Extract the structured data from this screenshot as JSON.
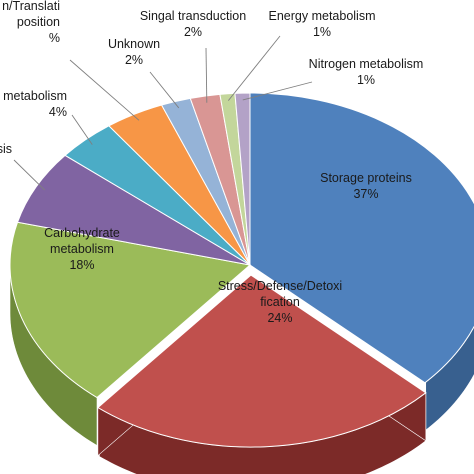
{
  "chart_data": {
    "type": "pie",
    "style": "3d-exploded",
    "slices": [
      {
        "label_lines": [
          "Storage proteins"
        ],
        "value_text": "37%",
        "value": 37,
        "color": "#4f81bd",
        "side": "#38608f"
      },
      {
        "label_lines": [
          "Stress/Defense/Detoxi",
          "fication"
        ],
        "value_text": "24%",
        "value": 24,
        "color": "#c0504d",
        "side": "#7c2a28"
      },
      {
        "label_lines": [
          "Carbohydrate",
          "metabolism"
        ],
        "value_text": "18%",
        "value": 18,
        "color": "#9bbb59",
        "side": "#6e8a3a"
      },
      {
        "label_lines": [
          "esis"
        ],
        "value_text": "",
        "value": 7,
        "color": "#8064a2",
        "side": "#5b4578"
      },
      {
        "label_lines": [
          "metabolism"
        ],
        "value_text": "4%",
        "value": 4,
        "color": "#4bacc6",
        "side": "#2f8299"
      },
      {
        "label_lines": [
          "n/Translati",
          "position",
          "%"
        ],
        "value_text": "",
        "value": 4,
        "color": "#f79646",
        "side": "#b86a28"
      },
      {
        "label_lines": [
          "Unknown"
        ],
        "value_text": "2%",
        "value": 2,
        "color": "#95b3d7",
        "side": "#6d8bb0"
      },
      {
        "label_lines": [
          "Singal transduction"
        ],
        "value_text": "2%",
        "value": 2,
        "color": "#d99694",
        "side": "#a86866"
      },
      {
        "label_lines": [
          "Energy metabolism"
        ],
        "value_text": "1%",
        "value": 1,
        "color": "#c3d69b",
        "side": "#91a56a"
      },
      {
        "label_lines": [
          "Nitrogen metabolism"
        ],
        "value_text": "1%",
        "value": 1,
        "color": "#b3a2c7",
        "side": "#8573a0"
      }
    ]
  }
}
